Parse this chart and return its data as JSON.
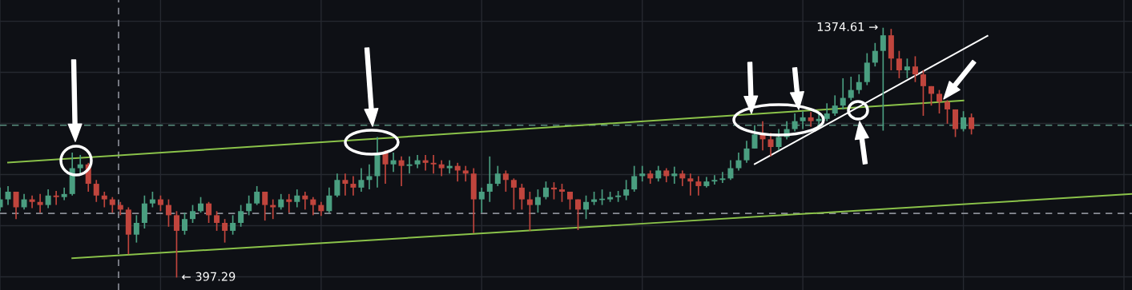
{
  "chart_data": {
    "type": "candlestick",
    "categories": [
      null,
      null,
      null,
      null,
      null,
      null,
      null,
      null,
      null,
      null,
      null,
      null,
      null,
      null,
      null,
      null,
      null,
      null,
      null,
      null,
      null,
      null,
      null,
      null,
      null,
      null,
      null,
      null,
      null,
      null,
      null,
      null,
      null,
      null,
      null,
      null,
      null,
      null,
      null,
      null,
      null,
      null,
      null,
      null,
      null,
      null,
      null,
      null,
      null,
      null,
      null,
      null,
      null,
      null,
      null,
      null,
      null,
      null,
      null,
      null,
      null,
      null,
      null,
      null,
      null,
      null,
      null,
      null,
      null,
      null,
      null,
      null,
      null,
      null,
      null,
      null,
      null,
      null,
      null,
      null,
      null,
      null,
      null,
      null,
      null,
      null,
      null,
      null,
      null,
      null,
      null,
      null,
      null,
      null,
      null,
      null,
      null,
      null,
      null,
      null,
      null,
      null,
      null,
      null,
      null,
      null,
      null,
      null,
      null,
      null,
      null,
      null,
      null,
      null,
      null,
      null,
      null,
      null,
      null,
      null,
      null,
      null,
      null,
      null,
      null,
      null,
      null,
      null,
      null,
      null,
      null,
      null,
      null,
      null,
      null,
      null,
      null,
      null,
      null,
      null,
      null,
      null
    ],
    "ohlc": [
      [
        672,
        749,
        657,
        703
      ],
      [
        703,
        755,
        681,
        733
      ],
      [
        733,
        733,
        626,
        672
      ],
      [
        672,
        724,
        663,
        703
      ],
      [
        703,
        718,
        669,
        693
      ],
      [
        693,
        724,
        651,
        681
      ],
      [
        681,
        742,
        669,
        718
      ],
      [
        718,
        736,
        681,
        712
      ],
      [
        712,
        749,
        700,
        724
      ],
      [
        724,
        886,
        718,
        825
      ],
      [
        825,
        877,
        804,
        840
      ],
      [
        840,
        846,
        733,
        764
      ],
      [
        764,
        779,
        693,
        718
      ],
      [
        718,
        733,
        672,
        703
      ],
      [
        703,
        712,
        651,
        681
      ],
      [
        681,
        693,
        641,
        663
      ],
      [
        663,
        672,
        488,
        565
      ],
      [
        565,
        641,
        534,
        611
      ],
      [
        611,
        718,
        589,
        687
      ],
      [
        687,
        733,
        672,
        703
      ],
      [
        703,
        718,
        657,
        681
      ],
      [
        681,
        703,
        596,
        641
      ],
      [
        641,
        657,
        397.29,
        580
      ],
      [
        580,
        651,
        565,
        626
      ],
      [
        626,
        681,
        611,
        657
      ],
      [
        657,
        712,
        651,
        687
      ],
      [
        687,
        693,
        611,
        641
      ],
      [
        641,
        657,
        580,
        611
      ],
      [
        611,
        626,
        534,
        580
      ],
      [
        580,
        641,
        565,
        611
      ],
      [
        611,
        681,
        596,
        657
      ],
      [
        657,
        718,
        641,
        687
      ],
      [
        687,
        755,
        681,
        733
      ],
      [
        733,
        733,
        620,
        681
      ],
      [
        681,
        703,
        626,
        672
      ],
      [
        672,
        724,
        663,
        703
      ],
      [
        703,
        724,
        651,
        693
      ],
      [
        693,
        742,
        672,
        718
      ],
      [
        718,
        733,
        663,
        703
      ],
      [
        703,
        712,
        641,
        681
      ],
      [
        681,
        693,
        638,
        657
      ],
      [
        657,
        749,
        651,
        718
      ],
      [
        718,
        804,
        712,
        779
      ],
      [
        779,
        804,
        718,
        764
      ],
      [
        764,
        794,
        718,
        749
      ],
      [
        749,
        825,
        733,
        779
      ],
      [
        779,
        840,
        742,
        794
      ],
      [
        794,
        947,
        749,
        886
      ],
      [
        886,
        895,
        764,
        840
      ],
      [
        840,
        886,
        810,
        856
      ],
      [
        856,
        871,
        755,
        834
      ],
      [
        834,
        871,
        804,
        840
      ],
      [
        840,
        877,
        825,
        856
      ],
      [
        856,
        877,
        816,
        846
      ],
      [
        846,
        877,
        804,
        840
      ],
      [
        840,
        856,
        794,
        825
      ],
      [
        825,
        856,
        804,
        834
      ],
      [
        834,
        846,
        773,
        816
      ],
      [
        816,
        834,
        773,
        804
      ],
      [
        804,
        825,
        571,
        703
      ],
      [
        703,
        749,
        651,
        733
      ],
      [
        733,
        871,
        693,
        764
      ],
      [
        764,
        834,
        755,
        804
      ],
      [
        804,
        816,
        733,
        779
      ],
      [
        779,
        785,
        663,
        749
      ],
      [
        749,
        764,
        663,
        703
      ],
      [
        703,
        733,
        580,
        681
      ],
      [
        681,
        742,
        651,
        712
      ],
      [
        712,
        773,
        703,
        749
      ],
      [
        749,
        770,
        703,
        742
      ],
      [
        742,
        764,
        693,
        733
      ],
      [
        733,
        733,
        663,
        703
      ],
      [
        703,
        703,
        583,
        663
      ],
      [
        663,
        718,
        626,
        693
      ],
      [
        693,
        733,
        681,
        703
      ],
      [
        703,
        742,
        681,
        703
      ],
      [
        703,
        733,
        693,
        712
      ],
      [
        712,
        736,
        693,
        718
      ],
      [
        718,
        779,
        700,
        742
      ],
      [
        742,
        834,
        733,
        794
      ],
      [
        794,
        834,
        773,
        804
      ],
      [
        804,
        816,
        764,
        785
      ],
      [
        785,
        834,
        773,
        816
      ],
      [
        816,
        825,
        770,
        794
      ],
      [
        794,
        831,
        764,
        804
      ],
      [
        804,
        816,
        755,
        785
      ],
      [
        785,
        804,
        718,
        773
      ],
      [
        773,
        794,
        718,
        755
      ],
      [
        755,
        791,
        749,
        773
      ],
      [
        773,
        798,
        761,
        779
      ],
      [
        779,
        810,
        767,
        785
      ],
      [
        785,
        856,
        779,
        825
      ],
      [
        825,
        886,
        816,
        856
      ],
      [
        856,
        932,
        846,
        902
      ],
      [
        902,
        993,
        902,
        957
      ],
      [
        957,
        1009,
        895,
        938
      ],
      [
        938,
        963,
        871,
        908
      ],
      [
        908,
        978,
        895,
        947
      ],
      [
        947,
        1009,
        938,
        978
      ],
      [
        978,
        1039,
        969,
        1009
      ],
      [
        1009,
        1048,
        978,
        1024
      ],
      [
        1024,
        1045,
        987,
        1009
      ],
      [
        1009,
        1039,
        993,
        1018
      ],
      [
        1018,
        1079,
        1009,
        1039
      ],
      [
        1039,
        1110,
        1030,
        1070
      ],
      [
        1070,
        1177,
        1055,
        1100
      ],
      [
        1100,
        1183,
        1091,
        1131
      ],
      [
        1131,
        1192,
        1116,
        1162
      ],
      [
        1162,
        1275,
        1150,
        1238
      ],
      [
        1238,
        1315,
        1223,
        1284
      ],
      [
        1284,
        1374.61,
        972,
        1345
      ],
      [
        1345,
        1370,
        1208,
        1254
      ],
      [
        1254,
        1284,
        1177,
        1208
      ],
      [
        1208,
        1254,
        1177,
        1223
      ],
      [
        1223,
        1263,
        1162,
        1192
      ],
      [
        1192,
        1208,
        1030,
        1146
      ],
      [
        1146,
        1146,
        1070,
        1116
      ],
      [
        1116,
        1131,
        1039,
        1085
      ],
      [
        1085,
        1091,
        999,
        1055
      ],
      [
        1055,
        1055,
        947,
        978
      ],
      [
        978,
        1048,
        969,
        1024
      ],
      [
        1024,
        1039,
        957,
        978
      ],
      null,
      null,
      null,
      null,
      null,
      null,
      null,
      null,
      null,
      null,
      null,
      null,
      null,
      null,
      null,
      null,
      null,
      null,
      null,
      null
    ],
    "colors": [
      "#4a9e80",
      "#4a9e80",
      "#c0453d",
      "#4a9e80",
      "#c0453d",
      "#c0453d",
      "#4a9e80",
      "#c0453d",
      "#4a9e80",
      "#4a9e80",
      "#4a9e80",
      "#c0453d",
      "#c0453d",
      "#c0453d",
      "#c0453d",
      "#c0453d",
      "#c0453d",
      "#4a9e80",
      "#4a9e80",
      "#4a9e80",
      "#c0453d",
      "#c0453d",
      "#c0453d",
      "#4a9e80",
      "#4a9e80",
      "#4a9e80",
      "#c0453d",
      "#c0453d",
      "#c0453d",
      "#4a9e80",
      "#4a9e80",
      "#4a9e80",
      "#4a9e80",
      "#c0453d",
      "#c0453d",
      "#4a9e80",
      "#c0453d",
      "#4a9e80",
      "#c0453d",
      "#c0453d",
      "#c0453d",
      "#4a9e80",
      "#4a9e80",
      "#c0453d",
      "#c0453d",
      "#4a9e80",
      "#4a9e80",
      "#4a9e80",
      "#c0453d",
      "#4a9e80",
      "#c0453d",
      "#4a9e80",
      "#4a9e80",
      "#c0453d",
      "#c0453d",
      "#c0453d",
      "#4a9e80",
      "#c0453d",
      "#c0453d",
      "#c0453d",
      "#4a9e80",
      "#4a9e80",
      "#4a9e80",
      "#c0453d",
      "#c0453d",
      "#c0453d",
      "#c0453d",
      "#4a9e80",
      "#4a9e80",
      "#c0453d",
      "#c0453d",
      "#c0453d",
      "#c0453d",
      "#4a9e80",
      "#4a9e80",
      "#4a9e80",
      "#4a9e80",
      "#4a9e80",
      "#4a9e80",
      "#4a9e80",
      "#4a9e80",
      "#c0453d",
      "#4a9e80",
      "#c0453d",
      "#4a9e80",
      "#c0453d",
      "#c0453d",
      "#c0453d",
      "#4a9e80",
      "#4a9e80",
      "#4a9e80",
      "#4a9e80",
      "#4a9e80",
      "#4a9e80",
      "#4a9e80",
      "#c0453d",
      "#c0453d",
      "#4a9e80",
      "#4a9e80",
      "#4a9e80",
      "#4a9e80",
      "#c0453d",
      "#4a9e80",
      "#4a9e80",
      "#4a9e80",
      "#4a9e80",
      "#4a9e80",
      "#4a9e80",
      "#4a9e80",
      "#4a9e80",
      "#4a9e80",
      "#c0453d",
      "#c0453d",
      "#4a9e80",
      "#c0453d",
      "#c0453d",
      "#c0453d",
      "#c0453d",
      "#c0453d",
      "#c0453d",
      "#4a9e80",
      "#c0453d",
      null,
      null,
      null,
      null,
      null,
      null,
      null,
      null,
      null,
      null,
      null,
      null,
      null,
      null,
      null,
      null,
      null,
      null,
      null,
      null
    ],
    "series": [
      {
        "type": "line",
        "color": "#8bc34a",
        "values": [
          null,
          847,
          null,
          null,
          null,
          null,
          null,
          null,
          null,
          null,
          null,
          null,
          null,
          null,
          null,
          null,
          null,
          null,
          null,
          null,
          null,
          null,
          null,
          null,
          null,
          null,
          null,
          null,
          null,
          null,
          null,
          null,
          null,
          null,
          null,
          null,
          null,
          null,
          null,
          null,
          null,
          null,
          null,
          null,
          null,
          null,
          null,
          null,
          null,
          null,
          null,
          null,
          null,
          null,
          null,
          null,
          null,
          null,
          null,
          null,
          null,
          null,
          null,
          null,
          null,
          null,
          null,
          null,
          null,
          null,
          null,
          null,
          null,
          null,
          null,
          null,
          null,
          null,
          null,
          null,
          null,
          null,
          null,
          null,
          null,
          null,
          null,
          null,
          null,
          null,
          null,
          null,
          null,
          null,
          null,
          null,
          null,
          null,
          null,
          null,
          null,
          null,
          null,
          null,
          null,
          null,
          null,
          null,
          null,
          null,
          null,
          null,
          null,
          null,
          null,
          null,
          null,
          null,
          null,
          null,
          1090,
          null,
          null,
          null,
          null,
          null,
          null,
          null,
          null,
          null,
          null,
          null,
          null,
          null,
          null,
          null,
          null,
          null,
          null,
          null,
          null,
          null
        ]
      },
      {
        "type": "line",
        "color": "#8bc34a",
        "values": [
          null,
          null,
          null,
          null,
          null,
          null,
          null,
          null,
          null,
          473,
          null,
          null,
          null,
          null,
          null,
          null,
          null,
          null,
          null,
          null,
          null,
          null,
          null,
          null,
          null,
          null,
          null,
          null,
          null,
          null,
          null,
          null,
          null,
          null,
          null,
          null,
          null,
          null,
          null,
          null,
          null,
          null,
          null,
          null,
          null,
          null,
          null,
          null,
          null,
          null,
          null,
          null,
          null,
          null,
          null,
          null,
          null,
          null,
          null,
          null,
          null,
          null,
          null,
          null,
          null,
          null,
          null,
          null,
          null,
          null,
          null,
          null,
          null,
          null,
          null,
          null,
          null,
          null,
          null,
          null,
          null,
          null,
          null,
          null,
          null,
          null,
          null,
          null,
          null,
          null,
          null,
          null,
          null,
          null,
          null,
          null,
          null,
          null,
          null,
          null,
          null,
          null,
          null,
          null,
          null,
          null,
          null,
          null,
          null,
          null,
          null,
          null,
          null,
          null,
          null,
          null,
          null,
          null,
          null,
          null,
          null,
          null,
          null,
          null,
          null,
          null,
          null,
          null,
          null,
          null,
          null,
          null,
          null,
          null,
          null,
          null,
          null,
          null,
          null,
          null,
          null,
          724
        ]
      },
      {
        "type": "line",
        "color": "#ffffff",
        "values": [
          null,
          null,
          null,
          null,
          null,
          null,
          null,
          null,
          null,
          null,
          null,
          null,
          null,
          null,
          null,
          null,
          null,
          null,
          null,
          null,
          null,
          null,
          null,
          null,
          null,
          null,
          null,
          null,
          null,
          null,
          null,
          null,
          null,
          null,
          null,
          null,
          null,
          null,
          null,
          null,
          null,
          null,
          null,
          null,
          null,
          null,
          null,
          null,
          null,
          null,
          null,
          null,
          null,
          null,
          null,
          null,
          null,
          null,
          null,
          null,
          null,
          null,
          null,
          null,
          null,
          null,
          null,
          null,
          null,
          null,
          null,
          null,
          null,
          null,
          null,
          null,
          null,
          null,
          null,
          null,
          null,
          null,
          null,
          null,
          null,
          null,
          null,
          null,
          null,
          null,
          null,
          null,
          null,
          null,
          841,
          null,
          null,
          null,
          null,
          null,
          null,
          null,
          null,
          null,
          null,
          null,
          null,
          null,
          null,
          null,
          null,
          null,
          null,
          null,
          null,
          null,
          null,
          null,
          null,
          null,
          null,
          null,
          null,
          1343,
          null,
          null,
          null,
          null,
          null,
          null,
          null,
          null,
          null,
          null,
          null,
          null,
          null,
          null,
          null,
          null,
          null,
          null
        ]
      }
    ],
    "ref_lines": [
      {
        "axis": "y",
        "value": 993,
        "color": "#5a8f80",
        "line_style": "dashed"
      },
      {
        "axis": "y",
        "value": 648,
        "color": "#8a8d96",
        "line_style": "dashed"
      }
    ],
    "annotations": [
      "1374.61 →",
      "← 397.29"
    ],
    "grid": true,
    "tick_labels": false
  }
}
